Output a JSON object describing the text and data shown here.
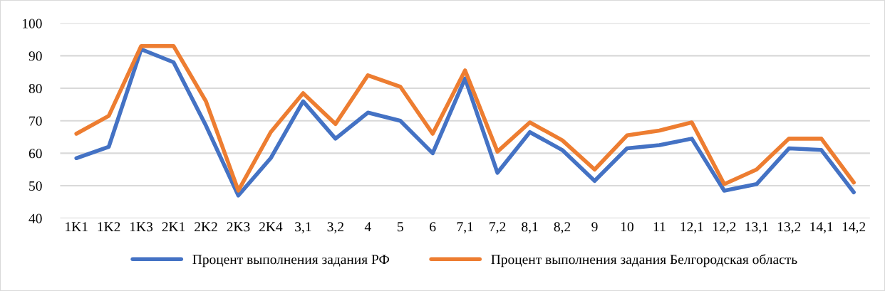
{
  "chart_data": {
    "type": "line",
    "categories": [
      "1K1",
      "1K2",
      "1K3",
      "2K1",
      "2K2",
      "2K3",
      "2K4",
      "3,1",
      "3,2",
      "4",
      "5",
      "6",
      "7,1",
      "7,2",
      "8,1",
      "8,2",
      "9",
      "10",
      "11",
      "12,1",
      "12,2",
      "13,1",
      "13,2",
      "14,1",
      "14,2"
    ],
    "series": [
      {
        "name": "Процент выполнения задания РФ",
        "color": "#4472c4",
        "values": [
          58.5,
          62,
          92,
          88,
          68.5,
          47,
          58.5,
          76,
          64.5,
          72.5,
          70,
          60,
          83,
          54,
          66.5,
          61,
          51.5,
          61.5,
          62.5,
          64.5,
          48.5,
          50.5,
          61.5,
          61,
          48
        ]
      },
      {
        "name": "Процент выполнения задания Белгородская область",
        "color": "#ed7d31",
        "values": [
          66,
          71.5,
          93,
          93,
          76,
          48.5,
          66.5,
          78.5,
          69,
          84,
          80.5,
          66,
          85.5,
          60.5,
          69.5,
          64,
          55,
          65.5,
          67,
          69.5,
          50.5,
          55,
          64.5,
          64.5,
          51
        ]
      }
    ],
    "ylim": [
      40,
      100
    ],
    "yticks": [
      40,
      50,
      60,
      70,
      80,
      90,
      100
    ],
    "grid": "y",
    "legend": "bottom",
    "marker": "none",
    "line_style": "solid"
  }
}
